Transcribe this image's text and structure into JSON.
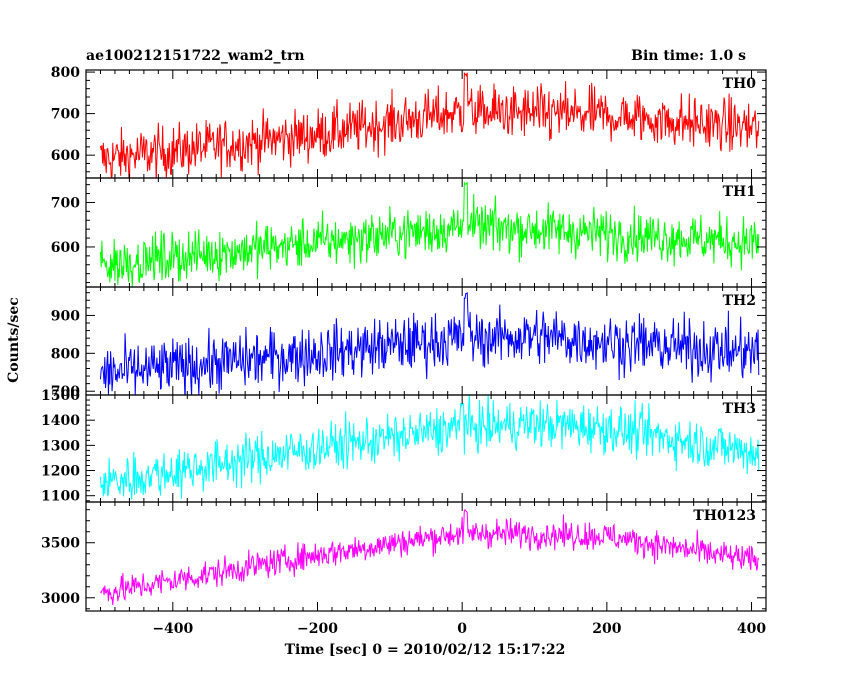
{
  "header": {
    "title": "ae100212151722_wam2_trn",
    "bin_time": "Bin time: 1.0 s"
  },
  "chart_data": {
    "type": "line",
    "title": "ae100212151722_wam2_trn",
    "subtitle": "Bin time: 1.0 s",
    "xlabel": "Time [sec] 0 = 2010/02/12 15:17:22",
    "ylabel": "Counts/sec",
    "xlim": [
      -520,
      420
    ],
    "x_ticks": [
      -400,
      -200,
      0,
      200,
      400
    ],
    "x_tick_labels": [
      "−400",
      "−200",
      "0",
      "200",
      "400"
    ],
    "x_data_range": [
      -500,
      410
    ],
    "grid": false,
    "panels": [
      {
        "name": "TH0",
        "color": "#ff0000",
        "ylim": [
          545,
          805
        ],
        "y_ticks": [
          600,
          700,
          800
        ],
        "trend": [
          [
            -500,
            590
          ],
          [
            -200,
            650
          ],
          [
            0,
            705
          ],
          [
            50,
            702
          ],
          [
            200,
            695
          ],
          [
            410,
            665
          ]
        ],
        "noise": 32,
        "spikes": [
          [
            5,
            800
          ]
        ]
      },
      {
        "name": "TH1",
        "color": "#00ff00",
        "ylim": [
          510,
          755
        ],
        "y_ticks": [
          600,
          700
        ],
        "trend": [
          [
            -500,
            560
          ],
          [
            -200,
            610
          ],
          [
            0,
            645
          ],
          [
            100,
            640
          ],
          [
            200,
            630
          ],
          [
            410,
            610
          ]
        ],
        "noise": 28,
        "spikes": [
          [
            5,
            745
          ]
        ]
      },
      {
        "name": "TH2",
        "color": "#0000ff",
        "ylim": [
          690,
          975
        ],
        "y_ticks": [
          700,
          800,
          900
        ],
        "trend": [
          [
            -500,
            745
          ],
          [
            -200,
            800
          ],
          [
            0,
            840
          ],
          [
            100,
            845
          ],
          [
            200,
            830
          ],
          [
            410,
            800
          ]
        ],
        "noise": 38,
        "spikes": [
          [
            5,
            960
          ]
        ]
      },
      {
        "name": "TH3",
        "color": "#00ffff",
        "ylim": [
          1075,
          1500
        ],
        "y_ticks": [
          1100,
          1200,
          1300,
          1400,
          1500
        ],
        "trend": [
          [
            -500,
            1150
          ],
          [
            -200,
            1290
          ],
          [
            0,
            1370
          ],
          [
            100,
            1385
          ],
          [
            200,
            1370
          ],
          [
            410,
            1270
          ]
        ],
        "noise": 48,
        "spikes": [
          [
            0,
            1470
          ]
        ]
      },
      {
        "name": "TH0123",
        "color": "#ff00ff",
        "ylim": [
          2880,
          3870
        ],
        "y_ticks": [
          3000,
          3500
        ],
        "trend": [
          [
            -500,
            3040
          ],
          [
            -200,
            3390
          ],
          [
            0,
            3590
          ],
          [
            100,
            3580
          ],
          [
            200,
            3560
          ],
          [
            410,
            3330
          ]
        ],
        "noise": 65,
        "spikes": [
          [
            5,
            3800
          ]
        ]
      }
    ]
  }
}
